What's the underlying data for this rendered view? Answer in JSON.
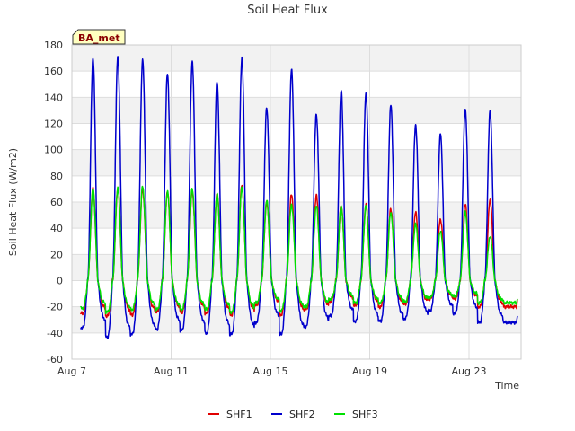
{
  "chart_data": {
    "type": "line",
    "title": "Soil Heat Flux",
    "xlabel": "Time",
    "ylabel": "Soil Heat Flux (W/m2)",
    "badge": "BA_met",
    "ylim": [
      -60,
      180
    ],
    "yticks": [
      -60,
      -40,
      -20,
      0,
      20,
      40,
      60,
      80,
      100,
      120,
      140,
      160,
      180
    ],
    "xlim_days": [
      7,
      25.1
    ],
    "xticks": [
      {
        "day": 7,
        "label": "Aug 7"
      },
      {
        "day": 11,
        "label": "Aug 11"
      },
      {
        "day": 15,
        "label": "Aug 15"
      },
      {
        "day": 19,
        "label": "Aug 19"
      },
      {
        "day": 23,
        "label": "Aug 23"
      }
    ],
    "grid": true,
    "legend_position": "bottom-center",
    "peak_days": [
      7.85,
      8.85,
      9.85,
      10.85,
      11.85,
      12.85,
      13.85,
      14.85,
      15.85,
      16.85,
      17.85,
      18.85,
      19.85,
      20.85,
      21.85,
      22.85,
      23.85
    ],
    "series": [
      {
        "name": "SHF1",
        "color": "#e00000",
        "peaks": [
          70,
          70,
          70,
          68,
          68,
          66,
          73,
          60,
          66,
          65,
          57,
          58,
          55,
          52,
          47,
          58,
          62
        ],
        "troughs": [
          -25,
          -27,
          -26,
          -24,
          -24,
          -25,
          -26,
          -19,
          -26,
          -22,
          -16,
          -19,
          -20,
          -18,
          -14,
          -14,
          -20
        ]
      },
      {
        "name": "SHF2",
        "color": "#0000cc",
        "peaks": [
          170,
          171,
          169,
          158,
          167,
          152,
          170,
          132,
          161,
          127,
          145,
          143,
          134,
          119,
          112,
          131,
          129
        ],
        "troughs": [
          -36,
          -43,
          -41,
          -37,
          -38,
          -40,
          -41,
          -32,
          -41,
          -35,
          -27,
          -31,
          -31,
          -29,
          -23,
          -25,
          -32
        ]
      },
      {
        "name": "SHF3",
        "color": "#00e000",
        "peaks": [
          70,
          71,
          72,
          68,
          70,
          66,
          71,
          61,
          58,
          57,
          57,
          57,
          52,
          43,
          38,
          52,
          34
        ],
        "troughs": [
          -21,
          -24,
          -22,
          -22,
          -22,
          -22,
          -24,
          -17,
          -23,
          -20,
          -14,
          -17,
          -17,
          -16,
          -13,
          -12,
          -17
        ]
      }
    ],
    "series_end": [
      {
        "name": "SHF1",
        "last_value": -14
      },
      {
        "name": "SHF2",
        "last_value": -27
      },
      {
        "name": "SHF3",
        "last_value": -14
      }
    ]
  }
}
